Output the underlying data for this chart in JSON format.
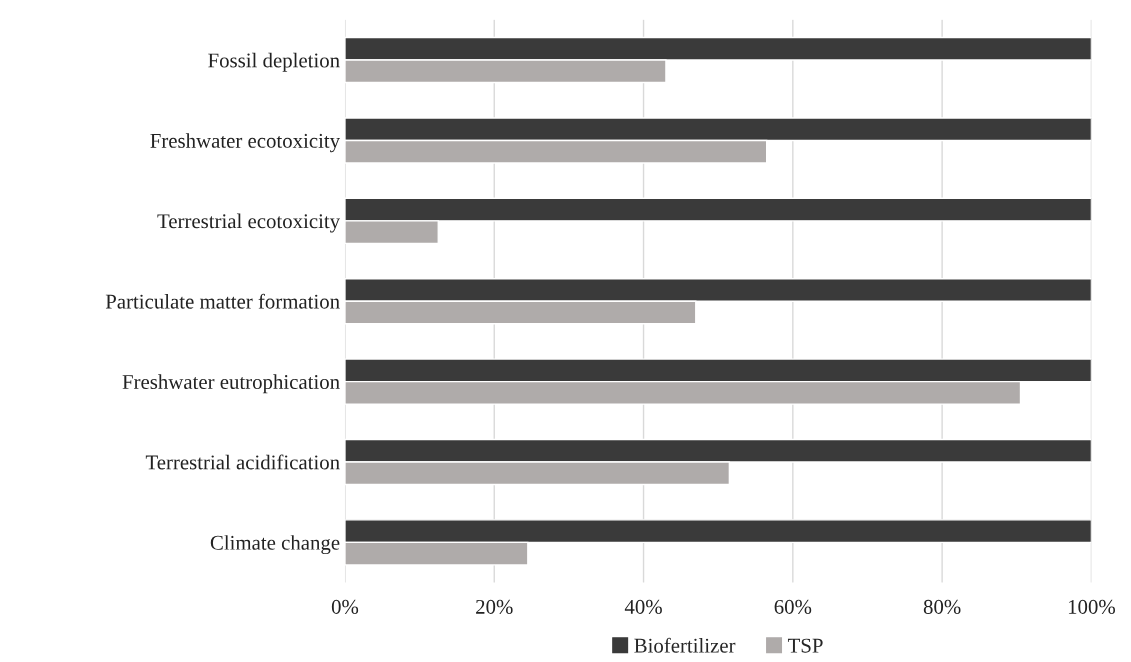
{
  "chart_data": {
    "type": "bar",
    "orientation": "horizontal",
    "categories": [
      "Fossil depletion",
      "Freshwater ecotoxicity",
      "Terrestrial ecotoxicity",
      "Particulate matter formation",
      "Freshwater eutrophication",
      "Terrestrial acidification",
      "Climate change"
    ],
    "series": [
      {
        "name": "Biofertilizer",
        "color": "#3a3a3a",
        "values": [
          100,
          100,
          100,
          100,
          100,
          100,
          100
        ]
      },
      {
        "name": "TSP",
        "color": "#afabaa",
        "values": [
          43,
          56.5,
          12.5,
          47,
          90.5,
          51.5,
          24.5
        ]
      }
    ],
    "xlim": [
      0,
      100
    ],
    "xticks": [
      {
        "value": 0,
        "label": "0%"
      },
      {
        "value": 20,
        "label": "20%"
      },
      {
        "value": 40,
        "label": "40%"
      },
      {
        "value": 60,
        "label": "60%"
      },
      {
        "value": 80,
        "label": "80%"
      },
      {
        "value": 100,
        "label": "100%"
      }
    ],
    "grid": "x",
    "legend": "bottom"
  }
}
